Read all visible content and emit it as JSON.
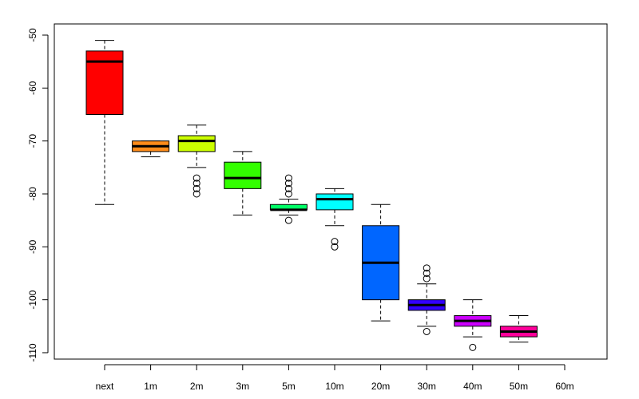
{
  "chart_data": {
    "type": "boxplot",
    "title": "",
    "xlabel": "",
    "ylabel": "",
    "ylim": [
      -112,
      -48
    ],
    "yticks": [
      -50,
      -60,
      -70,
      -80,
      -90,
      -100,
      -110
    ],
    "categories": [
      "next",
      "1m",
      "2m",
      "3m",
      "5m",
      "10m",
      "20m",
      "30m",
      "40m",
      "50m",
      "60m"
    ],
    "boxes": [
      {
        "category": "next",
        "color": "#FF0000",
        "whisker_low": -82,
        "q1": -65,
        "median": -55,
        "q3": -53,
        "whisker_high": -51,
        "outliers": []
      },
      {
        "category": "1m",
        "color": "#FF8C1A",
        "whisker_low": -73,
        "q1": -72,
        "median": -71,
        "q3": -70,
        "whisker_high": -70,
        "outliers": []
      },
      {
        "category": "2m",
        "color": "#CCFF00",
        "whisker_low": -75,
        "q1": -72,
        "median": -70,
        "q3": -69,
        "whisker_high": -67,
        "outliers": [
          -77,
          -78,
          -79,
          -80
        ]
      },
      {
        "category": "3m",
        "color": "#33FF00",
        "whisker_low": -84,
        "q1": -79,
        "median": -77,
        "q3": -74,
        "whisker_high": -72,
        "outliers": []
      },
      {
        "category": "5m",
        "color": "#00FF66",
        "whisker_low": -84,
        "q1": -83,
        "median": -83,
        "q3": -82,
        "whisker_high": -81,
        "outliers": [
          -77,
          -78,
          -79,
          -80,
          -85
        ]
      },
      {
        "category": "10m",
        "color": "#00FFFF",
        "whisker_low": -86,
        "q1": -83,
        "median": -81,
        "q3": -80,
        "whisker_high": -79,
        "outliers": [
          -89,
          -90
        ]
      },
      {
        "category": "20m",
        "color": "#0066FF",
        "whisker_low": -104,
        "q1": -100,
        "median": -93,
        "q3": -86,
        "whisker_high": -82,
        "outliers": []
      },
      {
        "category": "30m",
        "color": "#3300FF",
        "whisker_low": -105,
        "q1": -102,
        "median": -101,
        "q3": -100,
        "whisker_high": -97,
        "outliers": [
          -94,
          -95,
          -96,
          -106
        ]
      },
      {
        "category": "40m",
        "color": "#CC00FF",
        "whisker_low": -107,
        "q1": -105,
        "median": -104,
        "q3": -103,
        "whisker_high": -100,
        "outliers": [
          -109
        ]
      },
      {
        "category": "50m",
        "color": "#FF0099",
        "whisker_low": -108,
        "q1": -107,
        "median": -106,
        "q3": -105,
        "whisker_high": -103,
        "outliers": []
      },
      {
        "category": "60m",
        "color": "#FFFFFF",
        "empty": true
      }
    ]
  }
}
